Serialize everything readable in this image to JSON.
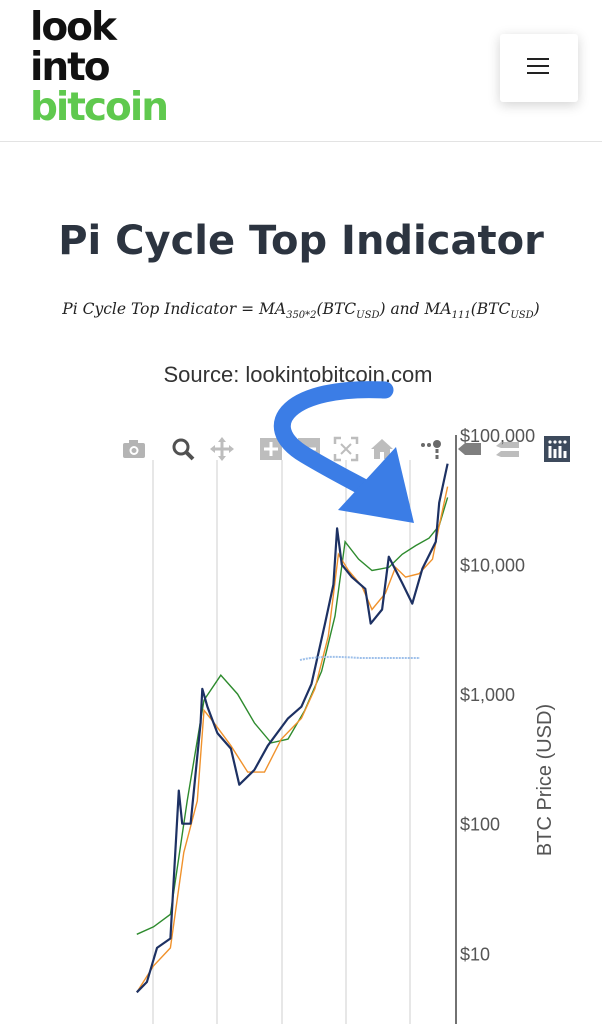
{
  "header": {
    "logo": {
      "line1": "look",
      "line2": "into",
      "line3": "bitcoin"
    },
    "menu_icon": "hamburger-menu-icon"
  },
  "page": {
    "title": "Pi Cycle Top Indicator",
    "formula": {
      "lhs": "Pi Cycle Top Indicator",
      "eq": " = MA",
      "sub1": "350*2",
      "mid1": "(BTC",
      "sub2": "USD",
      "mid2": ") and MA",
      "sub3": "111",
      "mid3": "(BTC",
      "sub4": "USD",
      "end": ")"
    },
    "source": "Source: lookintobitcoin.com"
  },
  "toolbar": {
    "icons": [
      "camera-icon",
      "zoom-icon",
      "pan-icon",
      "zoom-in-icon",
      "zoom-out-icon",
      "autoscale-icon",
      "reset-axes-icon",
      "spike-lines-icon",
      "compare-hover-icon",
      "closest-hover-icon",
      "plotly-logo-icon"
    ]
  },
  "colors": {
    "price": "#1d3163",
    "ma111": "#f0922c",
    "ma350x2": "#2e8b2e",
    "annotation_arrow": "#3b7de6",
    "logo_green": "#5fc94e"
  },
  "chart_data": {
    "type": "line",
    "yscale": "log",
    "ylabel": "BTC Price (USD)",
    "ylim": [
      3,
      100000
    ],
    "yticks": [
      "$10",
      "$100",
      "$1,000",
      "$10,000",
      "$100,000"
    ],
    "series": [
      {
        "key": "price",
        "x": [
          2012.0,
          2012.3,
          2012.6,
          2013.0,
          2013.25,
          2013.35,
          2013.6,
          2013.9,
          2013.95,
          2014.1,
          2014.4,
          2014.8,
          2015.05,
          2015.5,
          2015.9,
          2016.5,
          2016.9,
          2017.2,
          2017.6,
          2017.85,
          2017.96,
          2018.1,
          2018.4,
          2018.8,
          2018.96,
          2019.3,
          2019.5,
          2019.9,
          2020.2,
          2020.5,
          2020.9,
          2021.0,
          2021.25
        ],
        "y": [
          5,
          6,
          11,
          13,
          180,
          100,
          100,
          600,
          1100,
          800,
          500,
          380,
          200,
          260,
          400,
          650,
          800,
          1200,
          3500,
          7000,
          19000,
          10000,
          8000,
          6500,
          3500,
          4500,
          11500,
          7200,
          5000,
          9300,
          15000,
          30000,
          60000
        ]
      },
      {
        "key": "ma111",
        "x": [
          2012.0,
          2012.5,
          2013.0,
          2013.4,
          2013.8,
          2014.0,
          2014.3,
          2014.8,
          2015.3,
          2015.8,
          2016.3,
          2016.9,
          2017.3,
          2017.7,
          2018.0,
          2018.3,
          2018.7,
          2019.0,
          2019.4,
          2019.7,
          2020.0,
          2020.4,
          2020.8,
          2021.0,
          2021.25
        ],
        "y": [
          5,
          8,
          11,
          60,
          150,
          750,
          600,
          400,
          250,
          250,
          450,
          650,
          1100,
          2800,
          12000,
          9000,
          6800,
          4500,
          6000,
          9500,
          8000,
          8500,
          11000,
          20000,
          40000
        ]
      },
      {
        "key": "ma350x2",
        "x": [
          2012.0,
          2012.5,
          2013.0,
          2013.5,
          2014.0,
          2014.5,
          2015.0,
          2015.5,
          2016.0,
          2016.5,
          2017.0,
          2017.5,
          2017.9,
          2018.2,
          2018.6,
          2019.0,
          2019.5,
          2019.9,
          2020.3,
          2020.7,
          2021.0,
          2021.25
        ],
        "y": [
          14,
          16,
          20,
          150,
          900,
          1400,
          1000,
          600,
          420,
          450,
          750,
          1500,
          4000,
          15000,
          11000,
          9000,
          9500,
          12000,
          14000,
          16000,
          20000,
          33000
        ]
      }
    ]
  }
}
